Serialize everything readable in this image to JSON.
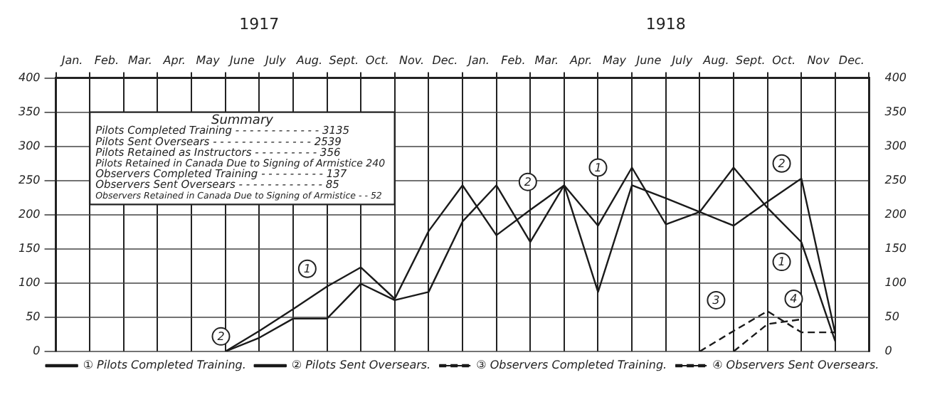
{
  "chart_data": {
    "type": "line",
    "x": [
      "1917-06",
      "1917-07",
      "1917-08",
      "1917-09",
      "1917-10",
      "1917-11",
      "1917-12",
      "1918-01",
      "1918-02",
      "1918-03",
      "1918-04",
      "1918-05",
      "1918-06",
      "1918-07",
      "1918-08",
      "1918-09",
      "1918-10",
      "1918-11",
      "1918-12"
    ],
    "series": [
      {
        "name": "① Pilots Completed Training.",
        "color": "#1a1a1a",
        "line_style": "solid",
        "values": [
          0,
          30,
          62,
          95,
          123,
          77,
          176,
          243,
          170,
          207,
          243,
          184,
          269,
          186,
          204,
          269,
          210,
          160,
          15
        ]
      },
      {
        "name": "② Pilots Sent Oversears.",
        "color": "#1a1a1a",
        "line_style": "solid",
        "values": [
          0,
          20,
          48,
          48,
          99,
          75,
          87,
          190,
          243,
          160,
          243,
          87,
          243,
          224,
          204,
          184,
          219,
          253,
          26
        ]
      },
      {
        "name": "③ Observers Completed Training.",
        "color": "#1a1a1a",
        "line_style": "dashed",
        "values": [
          null,
          null,
          null,
          null,
          null,
          null,
          null,
          null,
          null,
          null,
          null,
          null,
          null,
          null,
          0,
          30,
          59,
          28,
          28
        ]
      },
      {
        "name": "④ Observers Sent Oversears.",
        "color": "#1a1a1a",
        "line_style": "dashed",
        "values": [
          null,
          null,
          null,
          null,
          null,
          null,
          null,
          null,
          null,
          null,
          null,
          null,
          null,
          null,
          null,
          0,
          40,
          47,
          null
        ]
      }
    ],
    "xlim": [
      "1917-01",
      "1919-01"
    ],
    "xticks": [
      {
        "value": "1917-01",
        "label": null
      },
      {
        "value": "1917-01-16",
        "label": "Jan."
      },
      {
        "value": "1917-02",
        "label": null
      },
      {
        "value": "1917-02-15",
        "label": "Feb."
      },
      {
        "value": "1917-03",
        "label": null
      },
      {
        "value": "1917-03-16",
        "label": "Mar."
      },
      {
        "value": "1917-04",
        "label": null
      },
      {
        "value": "1917-04-16",
        "label": "Apr."
      },
      {
        "value": "1917-05",
        "label": null
      },
      {
        "value": "1917-05-16",
        "label": "May"
      },
      {
        "value": "1917-06",
        "label": null
      },
      {
        "value": "1917-06-16",
        "label": "June"
      },
      {
        "value": "1917-07",
        "label": null
      },
      {
        "value": "1917-07-16",
        "label": "July"
      },
      {
        "value": "1917-08",
        "label": null
      },
      {
        "value": "1917-08-16",
        "label": "Aug."
      },
      {
        "value": "1917-09",
        "label": null
      },
      {
        "value": "1917-09-16",
        "label": "Sept."
      },
      {
        "value": "1917-10",
        "label": null
      },
      {
        "value": "1917-10-16",
        "label": "Oct."
      },
      {
        "value": "1917-11",
        "label": null
      },
      {
        "value": "1917-11-16",
        "label": "Nov."
      },
      {
        "value": "1917-12",
        "label": null
      },
      {
        "value": "1917-12-16",
        "label": "Dec."
      },
      {
        "value": "1918-01",
        "label": null
      },
      {
        "value": "1918-01-16",
        "label": "Jan."
      },
      {
        "value": "1918-02",
        "label": null
      },
      {
        "value": "1918-02-15",
        "label": "Feb."
      },
      {
        "value": "1918-03",
        "label": null
      },
      {
        "value": "1918-03-16",
        "label": "Mar."
      },
      {
        "value": "1918-04",
        "label": null
      },
      {
        "value": "1918-04-16",
        "label": "Apr."
      },
      {
        "value": "1918-05",
        "label": null
      },
      {
        "value": "1918-05-16",
        "label": "May"
      },
      {
        "value": "1918-06",
        "label": null
      },
      {
        "value": "1918-06-16",
        "label": "June"
      },
      {
        "value": "1918-07",
        "label": null
      },
      {
        "value": "1918-07-16",
        "label": "July"
      },
      {
        "value": "1918-08",
        "label": null
      },
      {
        "value": "1918-08-16",
        "label": "Aug."
      },
      {
        "value": "1918-09",
        "label": null
      },
      {
        "value": "1918-09-16",
        "label": "Sept."
      },
      {
        "value": "1918-10",
        "label": null
      },
      {
        "value": "1918-10-16",
        "label": "Oct."
      },
      {
        "value": "1918-11",
        "label": null
      },
      {
        "value": "1918-11-16",
        "label": "Nov"
      },
      {
        "value": "1918-12",
        "label": null
      },
      {
        "value": "1918-12-16",
        "label": "Dec."
      },
      {
        "value": "1919-01",
        "label": null
      }
    ],
    "x2lim": [
      "1917-01",
      "1919-01"
    ],
    "x2ticks": [
      {
        "value": "1917-07",
        "label": "1917"
      },
      {
        "value": "1918-07",
        "label": "1918"
      }
    ],
    "ylim": [
      0,
      400
    ],
    "yticks": [
      0,
      50,
      100,
      150,
      200,
      250,
      300,
      350,
      400
    ],
    "y2lim": [
      0,
      400
    ],
    "y2ticks": [
      0,
      50,
      100,
      150,
      200,
      250,
      300,
      350,
      400
    ],
    "grid": true,
    "legend": "bottom",
    "marker": "none",
    "annotations": [
      "Summary",
      "Pilots Completed Training - - - - - - - - - - - - 3135",
      "Pilots Sent Oversears - - - - - - - - - - - - - - 2539",
      "Pilots Retained as Instructors - - - - - - - - - 356",
      "Pilots Retained in Canada Due to Signing of Armistice 240",
      "Observers Completed Training - - - - - - - - - 137",
      "Observers Sent Oversears - - - - - - - - - - - - 85",
      "Observers Retained in Canada Due to Signing of Armistice - - 52",
      {
        "text": "1",
        "x": "1917-08-14",
        "y": 121
      },
      {
        "text": "2",
        "x": "1917-05-28",
        "y": 22
      },
      {
        "text": "2",
        "x": "1918-02-27",
        "y": 248
      },
      {
        "text": "1",
        "x": "1918-05-01",
        "y": 269
      },
      {
        "text": "2",
        "x": "1918-10-14",
        "y": 275
      },
      {
        "text": "1",
        "x": "1918-10-14",
        "y": 131
      },
      {
        "text": "3",
        "x": "1918-08-16",
        "y": 75
      },
      {
        "text": "4",
        "x": "1918-10-25",
        "y": 77
      }
    ]
  }
}
